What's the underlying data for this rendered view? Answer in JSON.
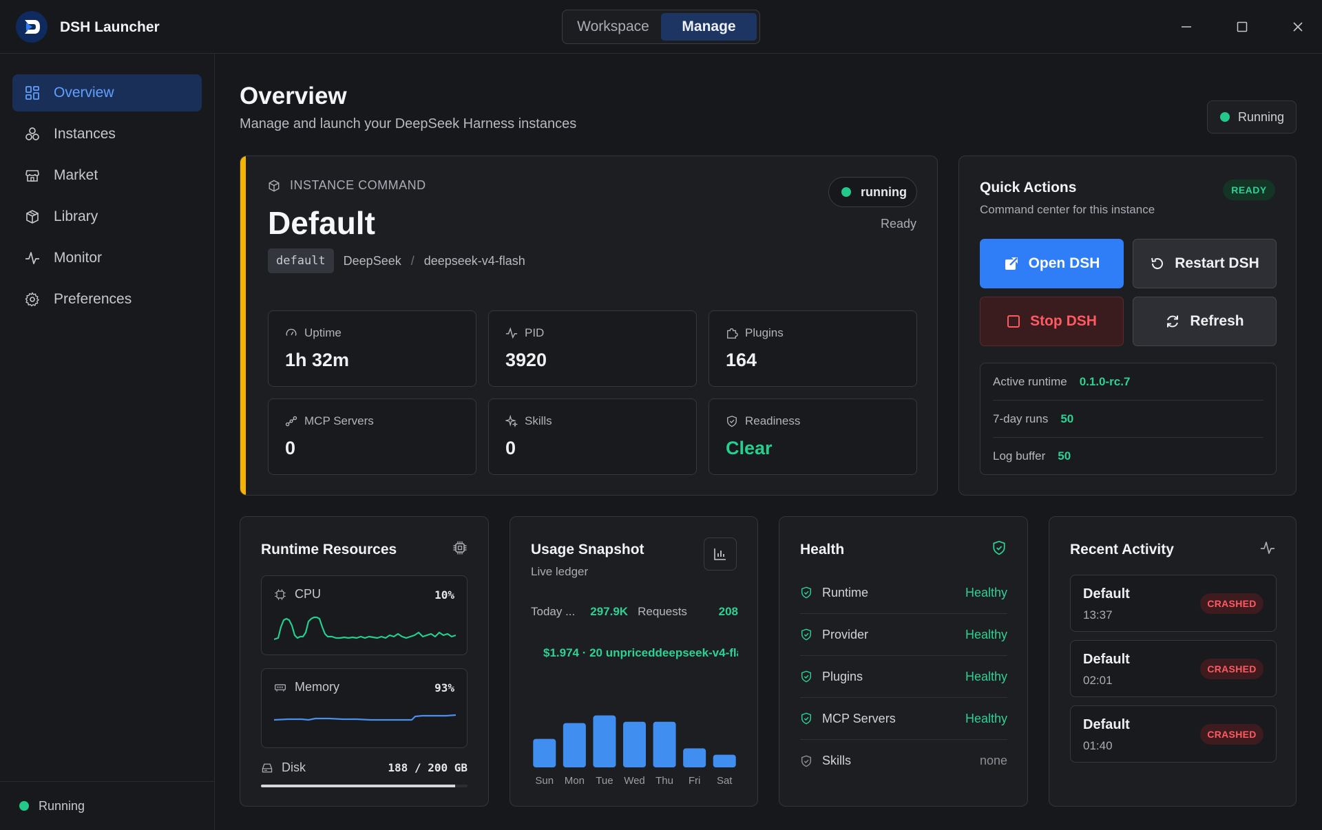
{
  "app": {
    "title": "DSH Launcher"
  },
  "mode_switch": {
    "tabs": [
      "Workspace",
      "Manage"
    ],
    "active": "Manage"
  },
  "sidebar": {
    "items": [
      {
        "label": "Overview",
        "icon": "grid-icon",
        "active": true
      },
      {
        "label": "Instances",
        "icon": "cluster-icon"
      },
      {
        "label": "Market",
        "icon": "store-icon"
      },
      {
        "label": "Library",
        "icon": "package-icon"
      },
      {
        "label": "Monitor",
        "icon": "activity-icon"
      },
      {
        "label": "Preferences",
        "icon": "gear-icon"
      }
    ],
    "footer_status": "Running"
  },
  "header": {
    "title": "Overview",
    "subtitle": "Manage and launch your DeepSeek Harness instances",
    "status": "Running"
  },
  "instance": {
    "section_label": "INSTANCE COMMAND",
    "name": "Default",
    "code": "default",
    "provider": "DeepSeek",
    "model": "deepseek-v4-flash",
    "state": "running",
    "readiness_text": "Ready",
    "stats": [
      {
        "label": "Uptime",
        "value": "1h 32m",
        "icon": "gauge-icon"
      },
      {
        "label": "PID",
        "value": "3920",
        "icon": "pulse-icon"
      },
      {
        "label": "Plugins",
        "value": "164",
        "icon": "puzzle-icon"
      },
      {
        "label": "MCP Servers",
        "value": "0",
        "icon": "network-icon"
      },
      {
        "label": "Skills",
        "value": "0",
        "icon": "sparkles-icon"
      },
      {
        "label": "Readiness",
        "value": "Clear",
        "icon": "shield-icon"
      }
    ]
  },
  "quick_actions": {
    "title": "Quick Actions",
    "subtitle": "Command center for this instance",
    "badge": "READY",
    "buttons": {
      "open": "Open DSH",
      "restart": "Restart DSH",
      "stop": "Stop DSH",
      "refresh": "Refresh"
    },
    "info": [
      {
        "label": "Active runtime",
        "value": "0.1.0-rc.7"
      },
      {
        "label": "7-day runs",
        "value": "50"
      },
      {
        "label": "Log buffer",
        "value": "50"
      }
    ]
  },
  "resources": {
    "title": "Runtime Resources",
    "cpu": {
      "label": "CPU",
      "value": "10%"
    },
    "memory": {
      "label": "Memory",
      "value": "93%"
    },
    "disk": {
      "label": "Disk",
      "value": "188 / 200 GB",
      "fraction": 0.94
    }
  },
  "usage": {
    "title": "Usage Snapshot",
    "subtitle": "Live ledger",
    "today_label": "Today ...",
    "today_tokens": "297.9K",
    "requests_label": "Requests",
    "requests_value": "208",
    "cost_line": "$1.974 · 20 unpriceddeepseek-v4-flash"
  },
  "health": {
    "title": "Health",
    "rows": [
      {
        "label": "Runtime",
        "value": "Healthy"
      },
      {
        "label": "Provider",
        "value": "Healthy"
      },
      {
        "label": "Plugins",
        "value": "Healthy"
      },
      {
        "label": "MCP Servers",
        "value": "Healthy"
      },
      {
        "label": "Skills",
        "value": "none"
      }
    ]
  },
  "activity": {
    "title": "Recent Activity",
    "items": [
      {
        "name": "Default",
        "time": "13:37",
        "status": "CRASHED"
      },
      {
        "name": "Default",
        "time": "02:01",
        "status": "CRASHED"
      },
      {
        "name": "Default",
        "time": "01:40",
        "status": "CRASHED"
      }
    ]
  },
  "chart_data": {
    "type": "bar",
    "categories": [
      "Sun",
      "Mon",
      "Tue",
      "Wed",
      "Thu",
      "Fri",
      "Sat"
    ],
    "values": [
      45,
      70,
      82,
      72,
      72,
      30,
      20
    ],
    "ylim": [
      0,
      100
    ],
    "title": "",
    "xlabel": "",
    "ylabel": ""
  },
  "colors": {
    "accent": "#2f7ef7",
    "success": "#2fd193",
    "danger": "#ff5a62",
    "warning": "#f4b400",
    "cpu_line": "#24d08f",
    "memory_line": "#4a90f0"
  }
}
